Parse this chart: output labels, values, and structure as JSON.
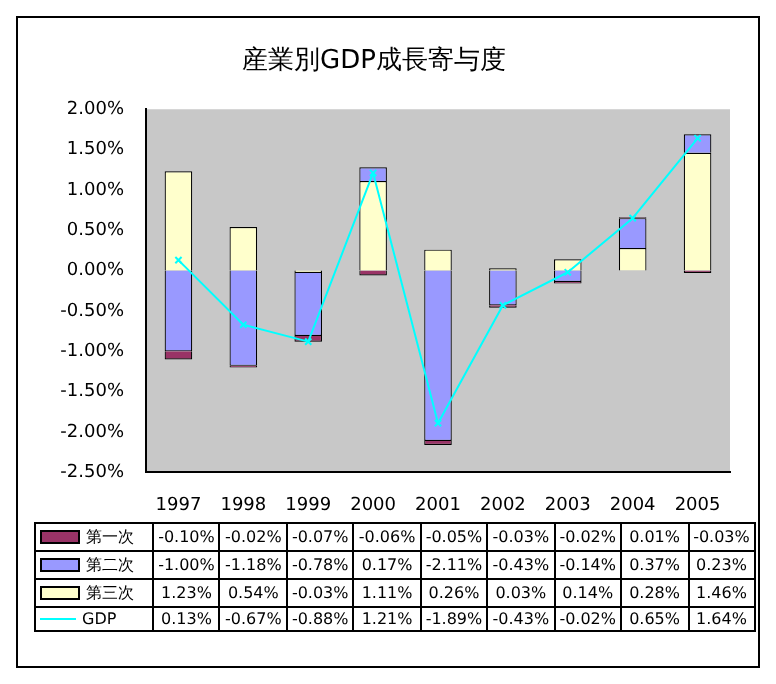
{
  "chart_data": {
    "type": "bar",
    "title": "産業別GDP成長寄与度",
    "stacked": true,
    "legend": "bottom",
    "grid": false,
    "categories": [
      "1997",
      "1998",
      "1999",
      "2000",
      "2001",
      "2002",
      "2003",
      "2004",
      "2005"
    ],
    "ylim": [
      -2.5,
      2
    ],
    "yticks": [
      {
        "value": -2.5,
        "label": "-2.50%"
      },
      {
        "value": -2,
        "label": "-2.00%"
      },
      {
        "value": -1.5,
        "label": "-1.50%"
      },
      {
        "value": -1,
        "label": "-1.00%"
      },
      {
        "value": -0.5,
        "label": "-0.50%"
      },
      {
        "value": 0,
        "label": "0.00%"
      },
      {
        "value": 0.5,
        "label": "0.50%"
      },
      {
        "value": 1,
        "label": "1.00%"
      },
      {
        "value": 1.5,
        "label": "1.50%"
      },
      {
        "value": 2,
        "label": "2.00%"
      }
    ],
    "series": [
      {
        "name": "第三次",
        "color": "#ffffcc",
        "values": [
          1.23,
          0.54,
          -0.03,
          1.11,
          0.26,
          0.03,
          0.14,
          0.28,
          1.46
        ],
        "value_labels": [
          "1.23%",
          "0.54%",
          "-0.03%",
          "1.11%",
          "0.26%",
          "0.03%",
          "0.14%",
          "0.28%",
          "1.46%"
        ]
      },
      {
        "name": "第二次",
        "color": "#9999ff",
        "values": [
          -1.0,
          -1.18,
          -0.78,
          0.17,
          -2.11,
          -0.43,
          -0.14,
          0.37,
          0.23
        ],
        "value_labels": [
          "-1.00%",
          "-1.18%",
          "-0.78%",
          "0.17%",
          "-2.11%",
          "-0.43%",
          "-0.14%",
          "0.37%",
          "0.23%"
        ]
      },
      {
        "name": "第一次",
        "color": "#993366",
        "values": [
          -0.1,
          -0.02,
          -0.07,
          -0.06,
          -0.05,
          -0.03,
          -0.02,
          0.01,
          -0.03
        ],
        "value_labels": [
          "-0.10%",
          "-0.02%",
          "-0.07%",
          "-0.06%",
          "-0.05%",
          "-0.03%",
          "-0.02%",
          "0.01%",
          "-0.03%"
        ]
      },
      {
        "name": "GDP",
        "type": "line",
        "marker": "cross",
        "color": "#00ffff",
        "values": [
          0.13,
          -0.67,
          -0.88,
          1.21,
          -1.89,
          -0.43,
          -0.02,
          0.65,
          1.64
        ],
        "value_labels": [
          "0.13%",
          "-0.67%",
          "-0.88%",
          "1.21%",
          "-1.89%",
          "-0.43%",
          "-0.02%",
          "0.65%",
          "1.64%"
        ]
      }
    ]
  }
}
